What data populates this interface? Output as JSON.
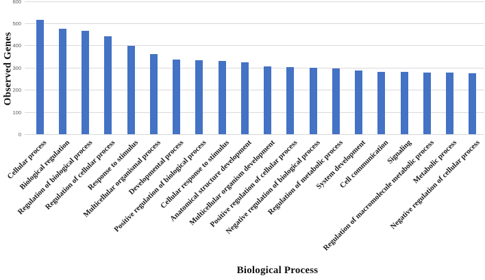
{
  "chart_data": {
    "type": "bar",
    "title": "",
    "xlabel": "Biological Process",
    "ylabel": "Observed Genes",
    "ylim": [
      0,
      600
    ],
    "yticks": [
      0,
      100,
      200,
      300,
      400,
      500,
      600
    ],
    "grid": true,
    "legend": "none",
    "bar_color": "#4472C4",
    "gridline_color": "#D9D9D9",
    "tick_label_color": "#595959",
    "categories": [
      "Cellular process",
      "Biological regulation",
      "Regulation of biological process",
      "Regulation of cellular process",
      "Response to stimulus",
      "Multicellular organismal process",
      "Developmental process",
      "Positive regulation of biological process",
      "Cellular response to stimulus",
      "Anatomical structure development",
      "Multicellular organism development",
      "Positive regulation of cellular process",
      "Negative regulation of biological process",
      "Regulation of metabolic process",
      "System development",
      "Cell communication",
      "Signaling",
      "Regulation of macromolecule metabolic process",
      "Metabolic process",
      "Negative regulation of cellular process"
    ],
    "values": [
      517,
      478,
      467,
      444,
      398,
      363,
      337,
      335,
      332,
      324,
      308,
      304,
      301,
      297,
      288,
      283,
      281,
      280,
      279,
      275
    ]
  }
}
